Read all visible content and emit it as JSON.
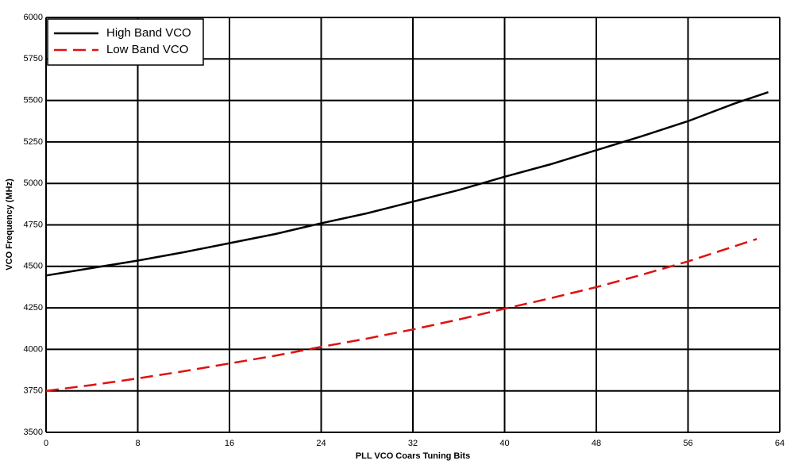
{
  "chart_data": {
    "type": "line",
    "x_label": "PLL VCO Coars Tuning Bits",
    "y_label": "VCO Frequency (MHz)",
    "xlim": [
      0,
      64
    ],
    "xticks": [
      0,
      8,
      16,
      24,
      32,
      40,
      48,
      56,
      64
    ],
    "ylim": [
      3500,
      6000
    ],
    "yticks": [
      3500,
      3750,
      4000,
      4250,
      4500,
      4750,
      5000,
      5250,
      5500,
      5750,
      6000
    ],
    "grid": true,
    "legend": "top-left",
    "series": [
      {
        "name": "High Band VCO",
        "color": "#000000",
        "dash": "solid",
        "x": [
          0,
          4,
          8,
          12,
          16,
          20,
          24,
          28,
          32,
          36,
          40,
          44,
          48,
          52,
          56,
          60,
          63
        ],
        "values": [
          4445,
          4490,
          4535,
          4585,
          4640,
          4695,
          4760,
          4820,
          4890,
          4960,
          5040,
          5115,
          5200,
          5285,
          5375,
          5480,
          5550
        ]
      },
      {
        "name": "Low Band VCO",
        "color": "#e01010",
        "dash": "dashed",
        "x": [
          0,
          4,
          8,
          12,
          16,
          20,
          24,
          28,
          32,
          36,
          40,
          44,
          48,
          52,
          56,
          60,
          62
        ],
        "values": [
          3750,
          3785,
          3825,
          3868,
          3915,
          3962,
          4015,
          4065,
          4120,
          4180,
          4245,
          4308,
          4375,
          4450,
          4530,
          4620,
          4665
        ]
      }
    ]
  }
}
